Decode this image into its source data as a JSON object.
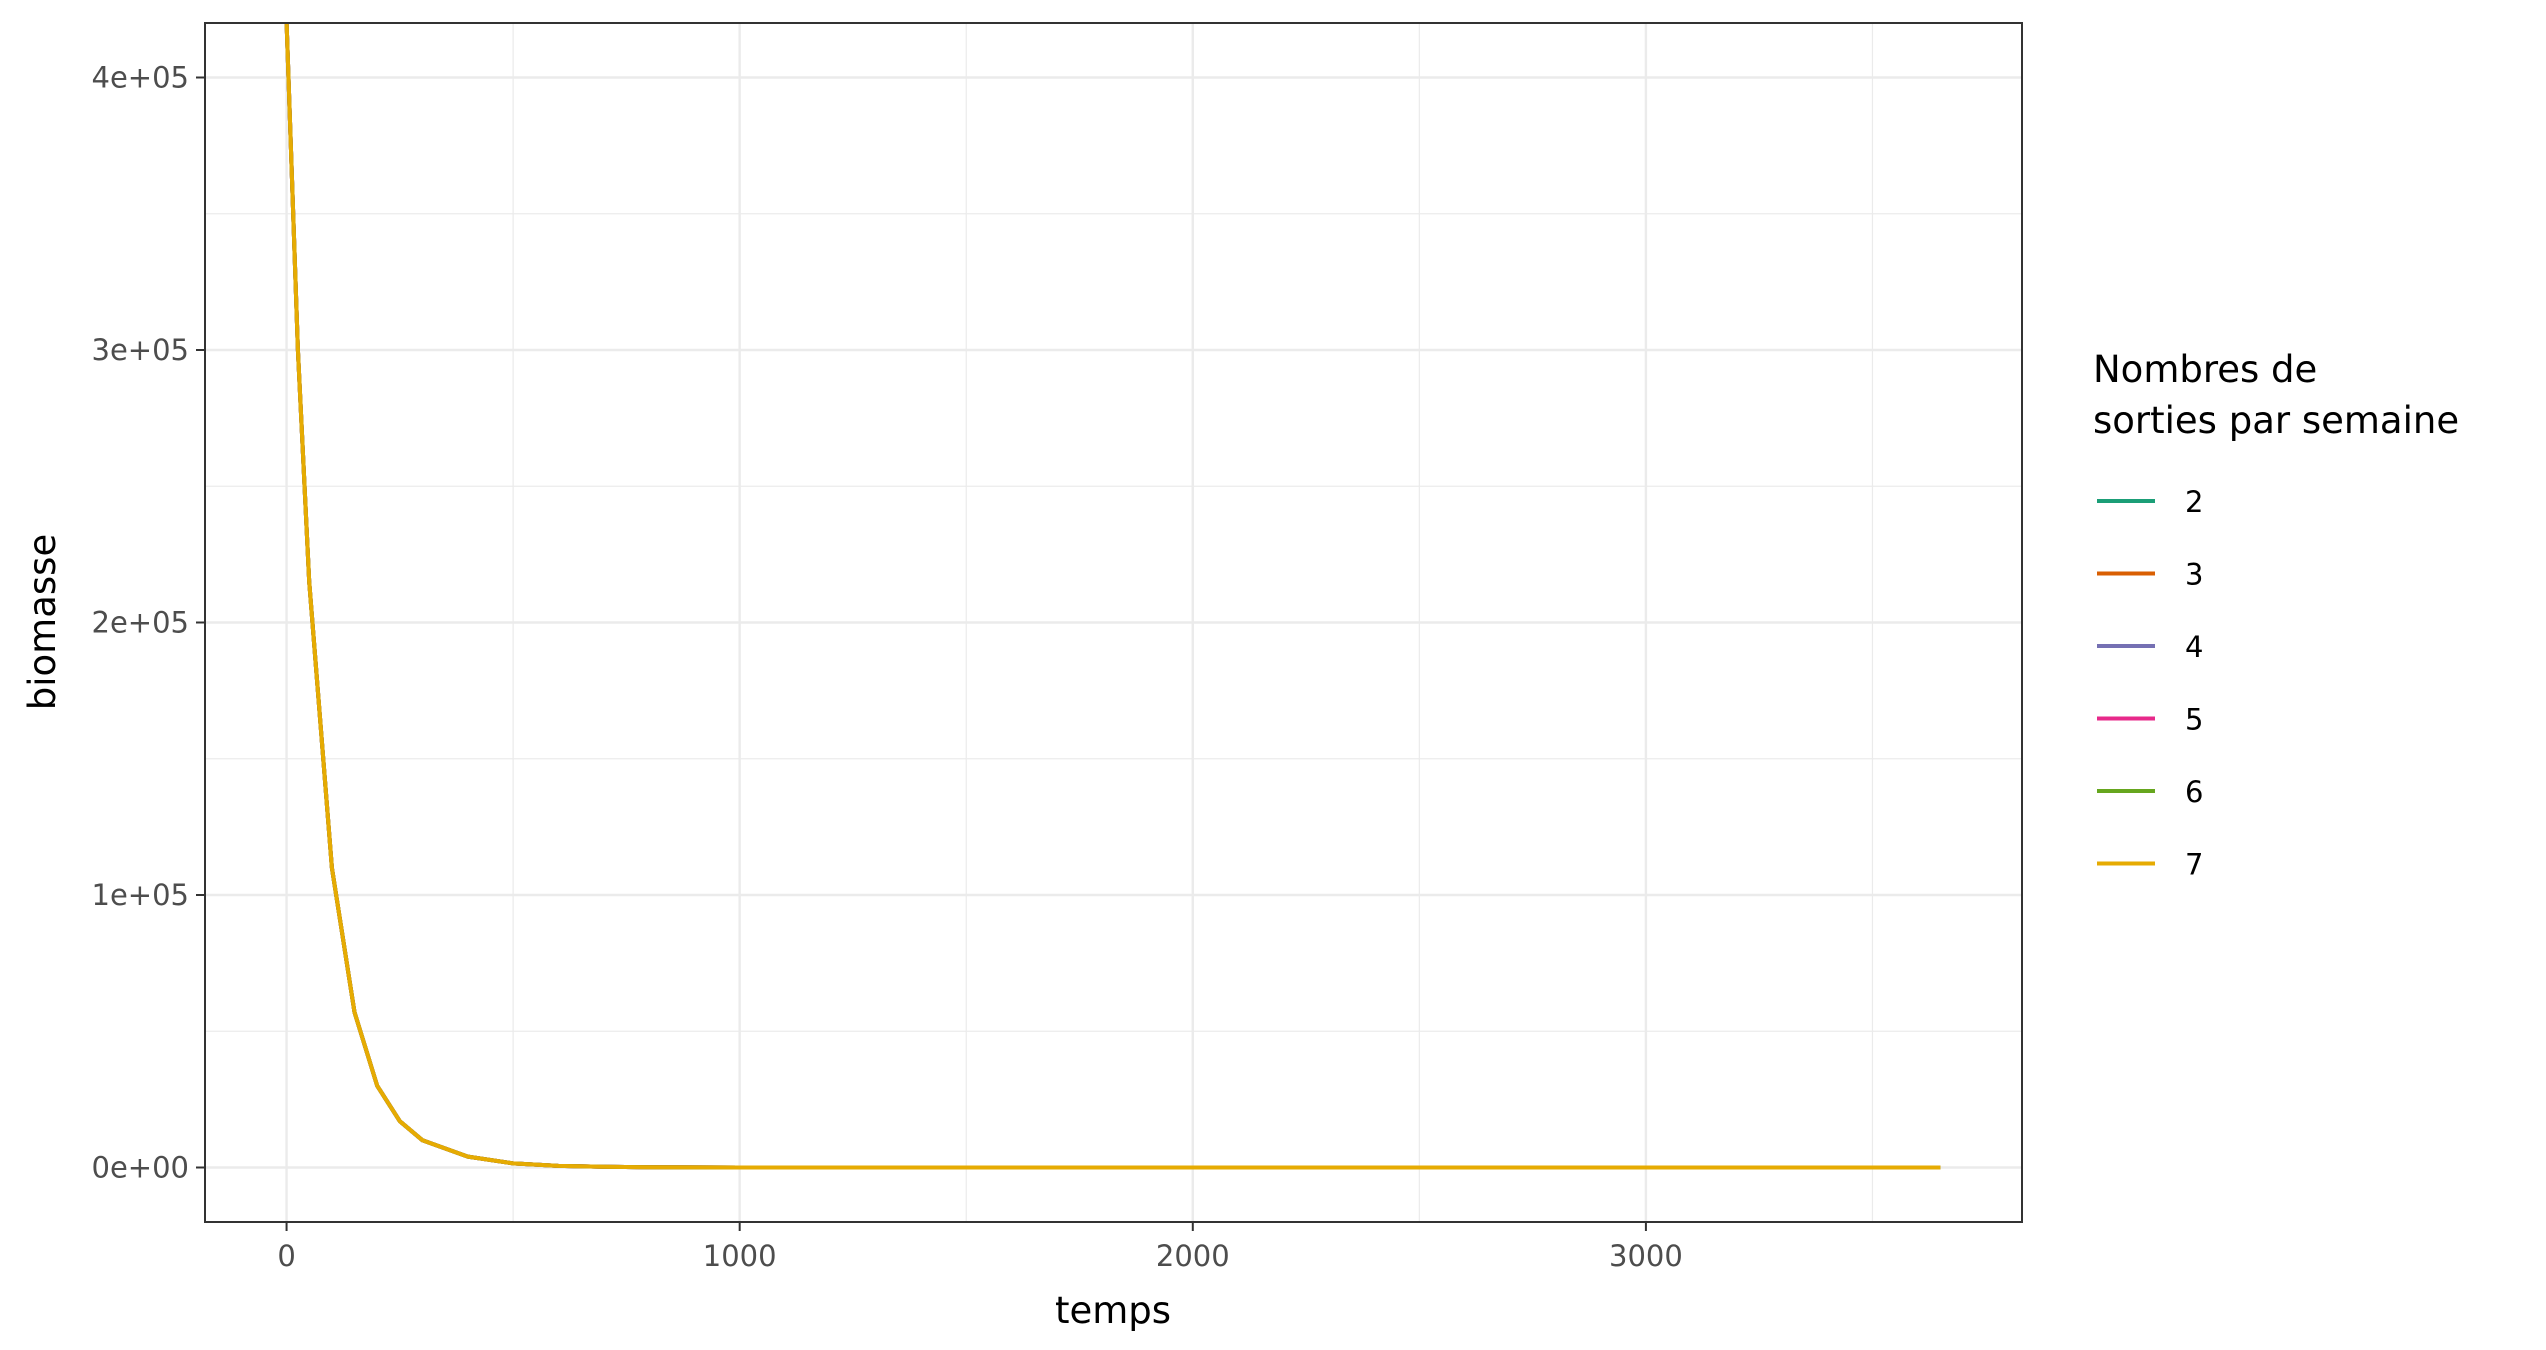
{
  "chart_data": {
    "type": "line",
    "title": "",
    "xlabel": "temps",
    "ylabel": "biomasse",
    "xlim": [
      -180,
      3830
    ],
    "ylim": [
      -20000,
      420000
    ],
    "x_ticks": [
      0,
      1000,
      2000,
      3000
    ],
    "x_tick_labels": [
      "0",
      "1000",
      "2000",
      "3000"
    ],
    "y_ticks": [
      0,
      100000,
      200000,
      300000,
      400000
    ],
    "y_tick_labels": [
      "0e+00",
      "1e+05",
      "2e+05",
      "3e+05",
      "4e+05"
    ],
    "grid": true,
    "legend_position": "right",
    "legend_title_lines": [
      "Nombres de",
      "sorties par semaine"
    ],
    "series": [
      {
        "name": "2",
        "color": "#1B9E77",
        "x": [
          0,
          25,
          50,
          100,
          150,
          200,
          250,
          300,
          400,
          500,
          600,
          700,
          800,
          900,
          1000,
          1500,
          2000,
          2500,
          3000,
          3650
        ],
        "values": [
          420000,
          300000,
          215000,
          110000,
          57000,
          30000,
          17000,
          10000,
          4000,
          1500,
          600,
          250,
          100,
          40,
          15,
          0,
          0,
          0,
          0,
          0
        ]
      },
      {
        "name": "3",
        "color": "#D95F02",
        "x": [
          0,
          25,
          50,
          100,
          150,
          200,
          250,
          300,
          400,
          500,
          600,
          700,
          800,
          900,
          1000,
          1500,
          2000,
          2500,
          3000,
          3650
        ],
        "values": [
          420000,
          300000,
          215000,
          110000,
          57000,
          30000,
          17000,
          10000,
          4000,
          1500,
          600,
          250,
          100,
          40,
          15,
          0,
          0,
          0,
          0,
          0
        ]
      },
      {
        "name": "4",
        "color": "#7570B3",
        "x": [
          0,
          25,
          50,
          100,
          150,
          200,
          250,
          300,
          400,
          500,
          600,
          700,
          800,
          900,
          1000,
          1500,
          2000,
          2500,
          3000,
          3650
        ],
        "values": [
          420000,
          300000,
          215000,
          110000,
          57000,
          30000,
          17000,
          10000,
          4000,
          1500,
          600,
          250,
          100,
          40,
          15,
          0,
          0,
          0,
          0,
          0
        ]
      },
      {
        "name": "5",
        "color": "#E7298A",
        "x": [
          0,
          25,
          50,
          100,
          150,
          200,
          250,
          300,
          400,
          500,
          600,
          700,
          800,
          900,
          1000,
          1500,
          2000,
          2500,
          3000,
          3650
        ],
        "values": [
          420000,
          300000,
          215000,
          110000,
          57000,
          30000,
          17000,
          10000,
          4000,
          1500,
          600,
          250,
          100,
          40,
          15,
          0,
          0,
          0,
          0,
          0
        ]
      },
      {
        "name": "6",
        "color": "#66A61E",
        "x": [
          0,
          25,
          50,
          100,
          150,
          200,
          250,
          300,
          400,
          500,
          600,
          700,
          800,
          900,
          1000,
          1500,
          2000,
          2500,
          3000,
          3650
        ],
        "values": [
          420000,
          300000,
          215000,
          110000,
          57000,
          30000,
          17000,
          10000,
          4000,
          1500,
          600,
          250,
          100,
          40,
          15,
          0,
          0,
          0,
          0,
          0
        ]
      },
      {
        "name": "7",
        "color": "#E6AB02",
        "x": [
          0,
          25,
          50,
          100,
          150,
          200,
          250,
          300,
          400,
          500,
          600,
          700,
          800,
          900,
          1000,
          1500,
          2000,
          2500,
          3000,
          3650
        ],
        "values": [
          420000,
          300000,
          215000,
          110000,
          57000,
          30000,
          17000,
          10000,
          4000,
          1500,
          600,
          250,
          100,
          40,
          15,
          0,
          0,
          0,
          0,
          0
        ]
      }
    ]
  }
}
